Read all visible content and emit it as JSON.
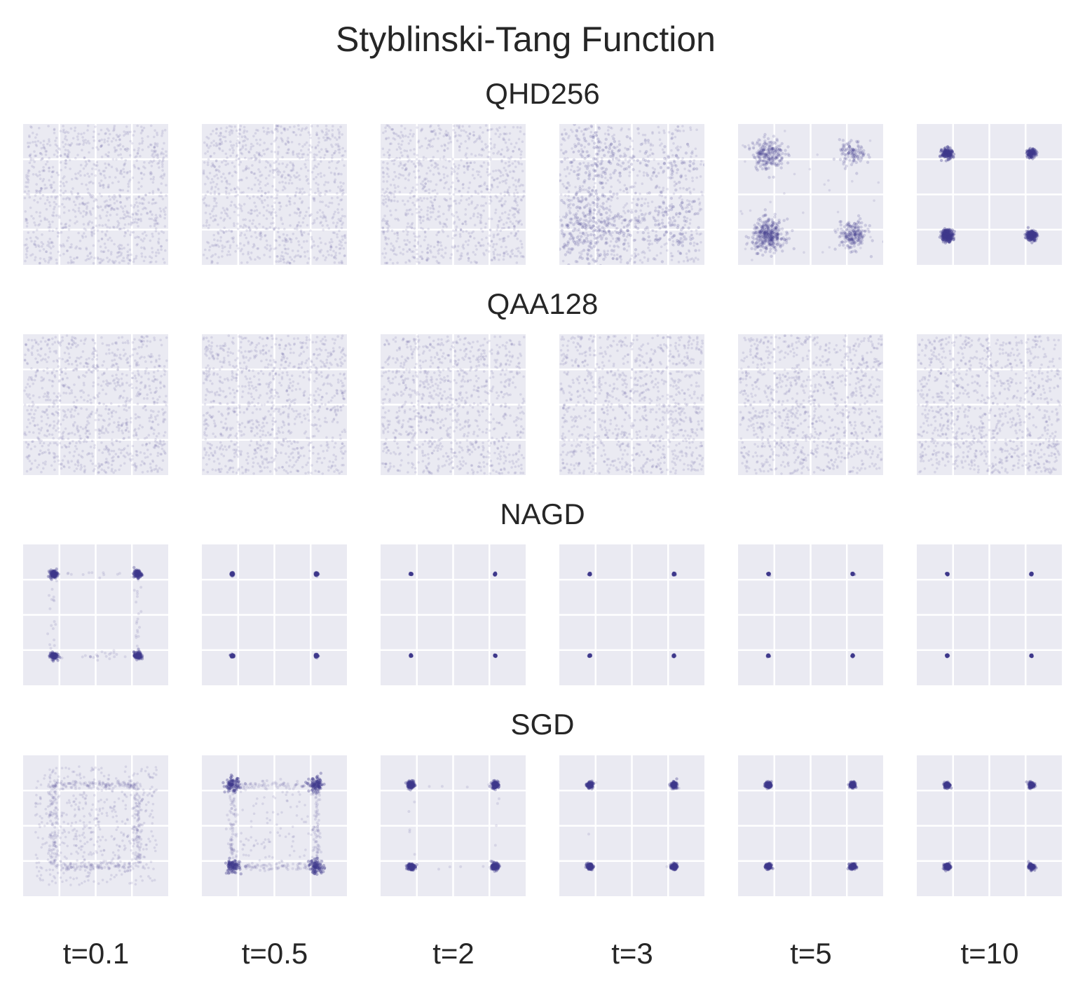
{
  "chart_data": {
    "type": "scatter",
    "title": "Styblinski-Tang Function",
    "columns": [
      "t=0.1",
      "t=0.5",
      "t=2",
      "t=3",
      "t=5",
      "t=10"
    ],
    "axis_range": {
      "x": [
        -5,
        5
      ],
      "y": [
        -5,
        5
      ]
    },
    "grid": true,
    "minima": {
      "x": [
        -2.9,
        2.9
      ],
      "y": [
        -2.9,
        2.9
      ]
    },
    "rows": [
      {
        "name": "QHD256",
        "panels": [
          {
            "uniform": 1000,
            "clusters": []
          },
          {
            "uniform": 1000,
            "clusters": []
          },
          {
            "uniform": 1000,
            "clusters": []
          },
          {
            "uniform": 620,
            "clusters": [
              {
                "x": -2.9,
                "y": -2.3,
                "n": 280,
                "s": 1.5
              },
              {
                "x": -2.6,
                "y": 2.6,
                "n": 140,
                "s": 1.3
              },
              {
                "x": 2.5,
                "y": -2.0,
                "n": 110,
                "s": 1.2
              },
              {
                "x": 2.6,
                "y": 2.6,
                "n": 50,
                "s": 1.1
              }
            ]
          },
          {
            "uniform": 40,
            "clusters": [
              {
                "x": -2.9,
                "y": 2.9,
                "n": 220,
                "s": 0.55
              },
              {
                "x": 2.9,
                "y": 2.9,
                "n": 110,
                "s": 0.45
              },
              {
                "x": -2.9,
                "y": -2.9,
                "n": 360,
                "s": 0.55
              },
              {
                "x": 2.9,
                "y": -2.9,
                "n": 200,
                "s": 0.5
              }
            ]
          },
          {
            "uniform": 0,
            "clusters": [
              {
                "x": -2.9,
                "y": 2.9,
                "n": 180,
                "s": 0.18
              },
              {
                "x": 2.9,
                "y": 2.9,
                "n": 120,
                "s": 0.15
              },
              {
                "x": -2.9,
                "y": -2.9,
                "n": 260,
                "s": 0.2
              },
              {
                "x": 2.9,
                "y": -2.9,
                "n": 200,
                "s": 0.18
              }
            ]
          }
        ]
      },
      {
        "name": "QAA128",
        "panels": [
          {
            "uniform": 1000,
            "clusters": []
          },
          {
            "uniform": 1000,
            "clusters": []
          },
          {
            "uniform": 1000,
            "clusters": []
          },
          {
            "uniform": 1000,
            "clusters": []
          },
          {
            "uniform": 1000,
            "clusters": []
          },
          {
            "uniform": 1000,
            "clusters": []
          }
        ]
      },
      {
        "name": "NAGD",
        "panels": [
          {
            "uniform": 0,
            "edges": 80,
            "clusters": [
              {
                "x": -2.9,
                "y": 2.9,
                "n": 120,
                "s": 0.13
              },
              {
                "x": 2.9,
                "y": 2.9,
                "n": 120,
                "s": 0.13
              },
              {
                "x": -2.9,
                "y": -2.9,
                "n": 120,
                "s": 0.13
              },
              {
                "x": 2.9,
                "y": -2.9,
                "n": 120,
                "s": 0.13
              }
            ]
          },
          {
            "uniform": 0,
            "clusters": [
              {
                "x": -2.9,
                "y": 2.9,
                "n": 80,
                "s": 0.05
              },
              {
                "x": 2.9,
                "y": 2.9,
                "n": 80,
                "s": 0.05
              },
              {
                "x": -2.9,
                "y": -2.9,
                "n": 80,
                "s": 0.05
              },
              {
                "x": 2.9,
                "y": -2.9,
                "n": 80,
                "s": 0.05
              }
            ]
          },
          {
            "uniform": 0,
            "clusters": [
              {
                "x": -2.9,
                "y": 2.9,
                "n": 60,
                "s": 0.03
              },
              {
                "x": 2.9,
                "y": 2.9,
                "n": 60,
                "s": 0.03
              },
              {
                "x": -2.9,
                "y": -2.9,
                "n": 60,
                "s": 0.03
              },
              {
                "x": 2.9,
                "y": -2.9,
                "n": 60,
                "s": 0.03
              }
            ]
          },
          {
            "uniform": 0,
            "clusters": [
              {
                "x": -2.9,
                "y": 2.9,
                "n": 60,
                "s": 0.03
              },
              {
                "x": 2.9,
                "y": 2.9,
                "n": 60,
                "s": 0.03
              },
              {
                "x": -2.9,
                "y": -2.9,
                "n": 60,
                "s": 0.03
              },
              {
                "x": 2.9,
                "y": -2.9,
                "n": 60,
                "s": 0.03
              }
            ]
          },
          {
            "uniform": 0,
            "clusters": [
              {
                "x": -2.9,
                "y": 2.9,
                "n": 60,
                "s": 0.03
              },
              {
                "x": 2.9,
                "y": 2.9,
                "n": 60,
                "s": 0.03
              },
              {
                "x": -2.9,
                "y": -2.9,
                "n": 60,
                "s": 0.03
              },
              {
                "x": 2.9,
                "y": -2.9,
                "n": 60,
                "s": 0.03
              }
            ]
          },
          {
            "uniform": 0,
            "clusters": [
              {
                "x": -2.9,
                "y": 2.9,
                "n": 60,
                "s": 0.03
              },
              {
                "x": 2.9,
                "y": 2.9,
                "n": 60,
                "s": 0.03
              },
              {
                "x": -2.9,
                "y": -2.9,
                "n": 60,
                "s": 0.03
              },
              {
                "x": 2.9,
                "y": -2.9,
                "n": 60,
                "s": 0.03
              }
            ]
          }
        ]
      },
      {
        "name": "SGD",
        "panels": [
          {
            "uniform": 520,
            "box": 4.2,
            "edges": 380,
            "clusters": []
          },
          {
            "uniform": 110,
            "box": 3.0,
            "edges": 330,
            "clusters": [
              {
                "x": -2.9,
                "y": 2.9,
                "n": 90,
                "s": 0.25
              },
              {
                "x": 2.9,
                "y": 2.9,
                "n": 90,
                "s": 0.25
              },
              {
                "x": -2.9,
                "y": -2.9,
                "n": 90,
                "s": 0.25
              },
              {
                "x": 2.9,
                "y": -2.9,
                "n": 90,
                "s": 0.25
              }
            ]
          },
          {
            "uniform": 0,
            "edges": 25,
            "clusters": [
              {
                "x": -2.9,
                "y": 2.9,
                "n": 150,
                "s": 0.12
              },
              {
                "x": 2.9,
                "y": 2.9,
                "n": 150,
                "s": 0.12
              },
              {
                "x": -2.9,
                "y": -2.9,
                "n": 150,
                "s": 0.12
              },
              {
                "x": 2.9,
                "y": -2.9,
                "n": 150,
                "s": 0.12
              }
            ]
          },
          {
            "uniform": 0,
            "edges": 4,
            "clusters": [
              {
                "x": -2.9,
                "y": 2.9,
                "n": 150,
                "s": 0.1
              },
              {
                "x": 2.9,
                "y": 2.9,
                "n": 150,
                "s": 0.1
              },
              {
                "x": -2.9,
                "y": -2.9,
                "n": 150,
                "s": 0.1
              },
              {
                "x": 2.9,
                "y": -2.9,
                "n": 150,
                "s": 0.1
              }
            ]
          },
          {
            "uniform": 0,
            "clusters": [
              {
                "x": -2.9,
                "y": 2.9,
                "n": 150,
                "s": 0.1
              },
              {
                "x": 2.9,
                "y": 2.9,
                "n": 150,
                "s": 0.1
              },
              {
                "x": -2.9,
                "y": -2.9,
                "n": 150,
                "s": 0.1
              },
              {
                "x": 2.9,
                "y": -2.9,
                "n": 150,
                "s": 0.1
              }
            ]
          },
          {
            "uniform": 0,
            "clusters": [
              {
                "x": -2.9,
                "y": 2.9,
                "n": 150,
                "s": 0.1
              },
              {
                "x": 2.9,
                "y": 2.9,
                "n": 150,
                "s": 0.1
              },
              {
                "x": -2.9,
                "y": -2.9,
                "n": 150,
                "s": 0.1
              },
              {
                "x": 2.9,
                "y": -2.9,
                "n": 150,
                "s": 0.1
              }
            ]
          }
        ]
      }
    ]
  },
  "colors": {
    "panel_bg": "#eaeaf2",
    "grid": "#ffffff",
    "point": "#3e3a8c",
    "text": "#262626"
  }
}
